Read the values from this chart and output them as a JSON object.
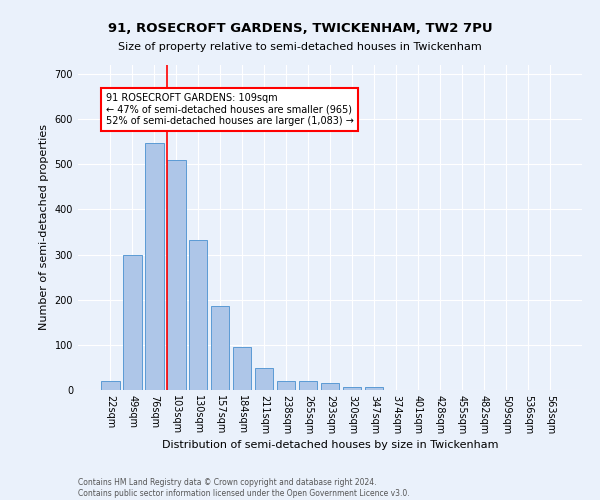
{
  "title": "91, ROSECROFT GARDENS, TWICKENHAM, TW2 7PU",
  "subtitle": "Size of property relative to semi-detached houses in Twickenham",
  "xlabel": "Distribution of semi-detached houses by size in Twickenham",
  "ylabel": "Number of semi-detached properties",
  "footnote1": "Contains HM Land Registry data © Crown copyright and database right 2024.",
  "footnote2": "Contains public sector information licensed under the Open Government Licence v3.0.",
  "bar_labels": [
    "22sqm",
    "49sqm",
    "76sqm",
    "103sqm",
    "130sqm",
    "157sqm",
    "184sqm",
    "211sqm",
    "238sqm",
    "265sqm",
    "293sqm",
    "320sqm",
    "347sqm",
    "374sqm",
    "401sqm",
    "428sqm",
    "455sqm",
    "482sqm",
    "509sqm",
    "536sqm",
    "563sqm"
  ],
  "bar_values": [
    20,
    300,
    547,
    510,
    333,
    185,
    96,
    49,
    20,
    20,
    16,
    7,
    7,
    0,
    0,
    0,
    0,
    0,
    0,
    0,
    0
  ],
  "bar_color": "#aec6e8",
  "bar_edge_color": "#5b9bd5",
  "vline_pos": 2.575,
  "vline_color": "red",
  "annotation_text": "91 ROSECROFT GARDENS: 109sqm\n← 47% of semi-detached houses are smaller (965)\n52% of semi-detached houses are larger (1,083) →",
  "annotation_box_color": "white",
  "annotation_border_color": "red",
  "ylim": [
    0,
    720
  ],
  "yticks": [
    0,
    100,
    200,
    300,
    400,
    500,
    600,
    700
  ],
  "background_color": "#eaf1fb",
  "grid_color": "white",
  "title_fontsize": 9.5,
  "subtitle_fontsize": 8,
  "ylabel_fontsize": 8,
  "xlabel_fontsize": 8,
  "tick_fontsize": 7,
  "annot_fontsize": 7,
  "footnote_fontsize": 5.5
}
